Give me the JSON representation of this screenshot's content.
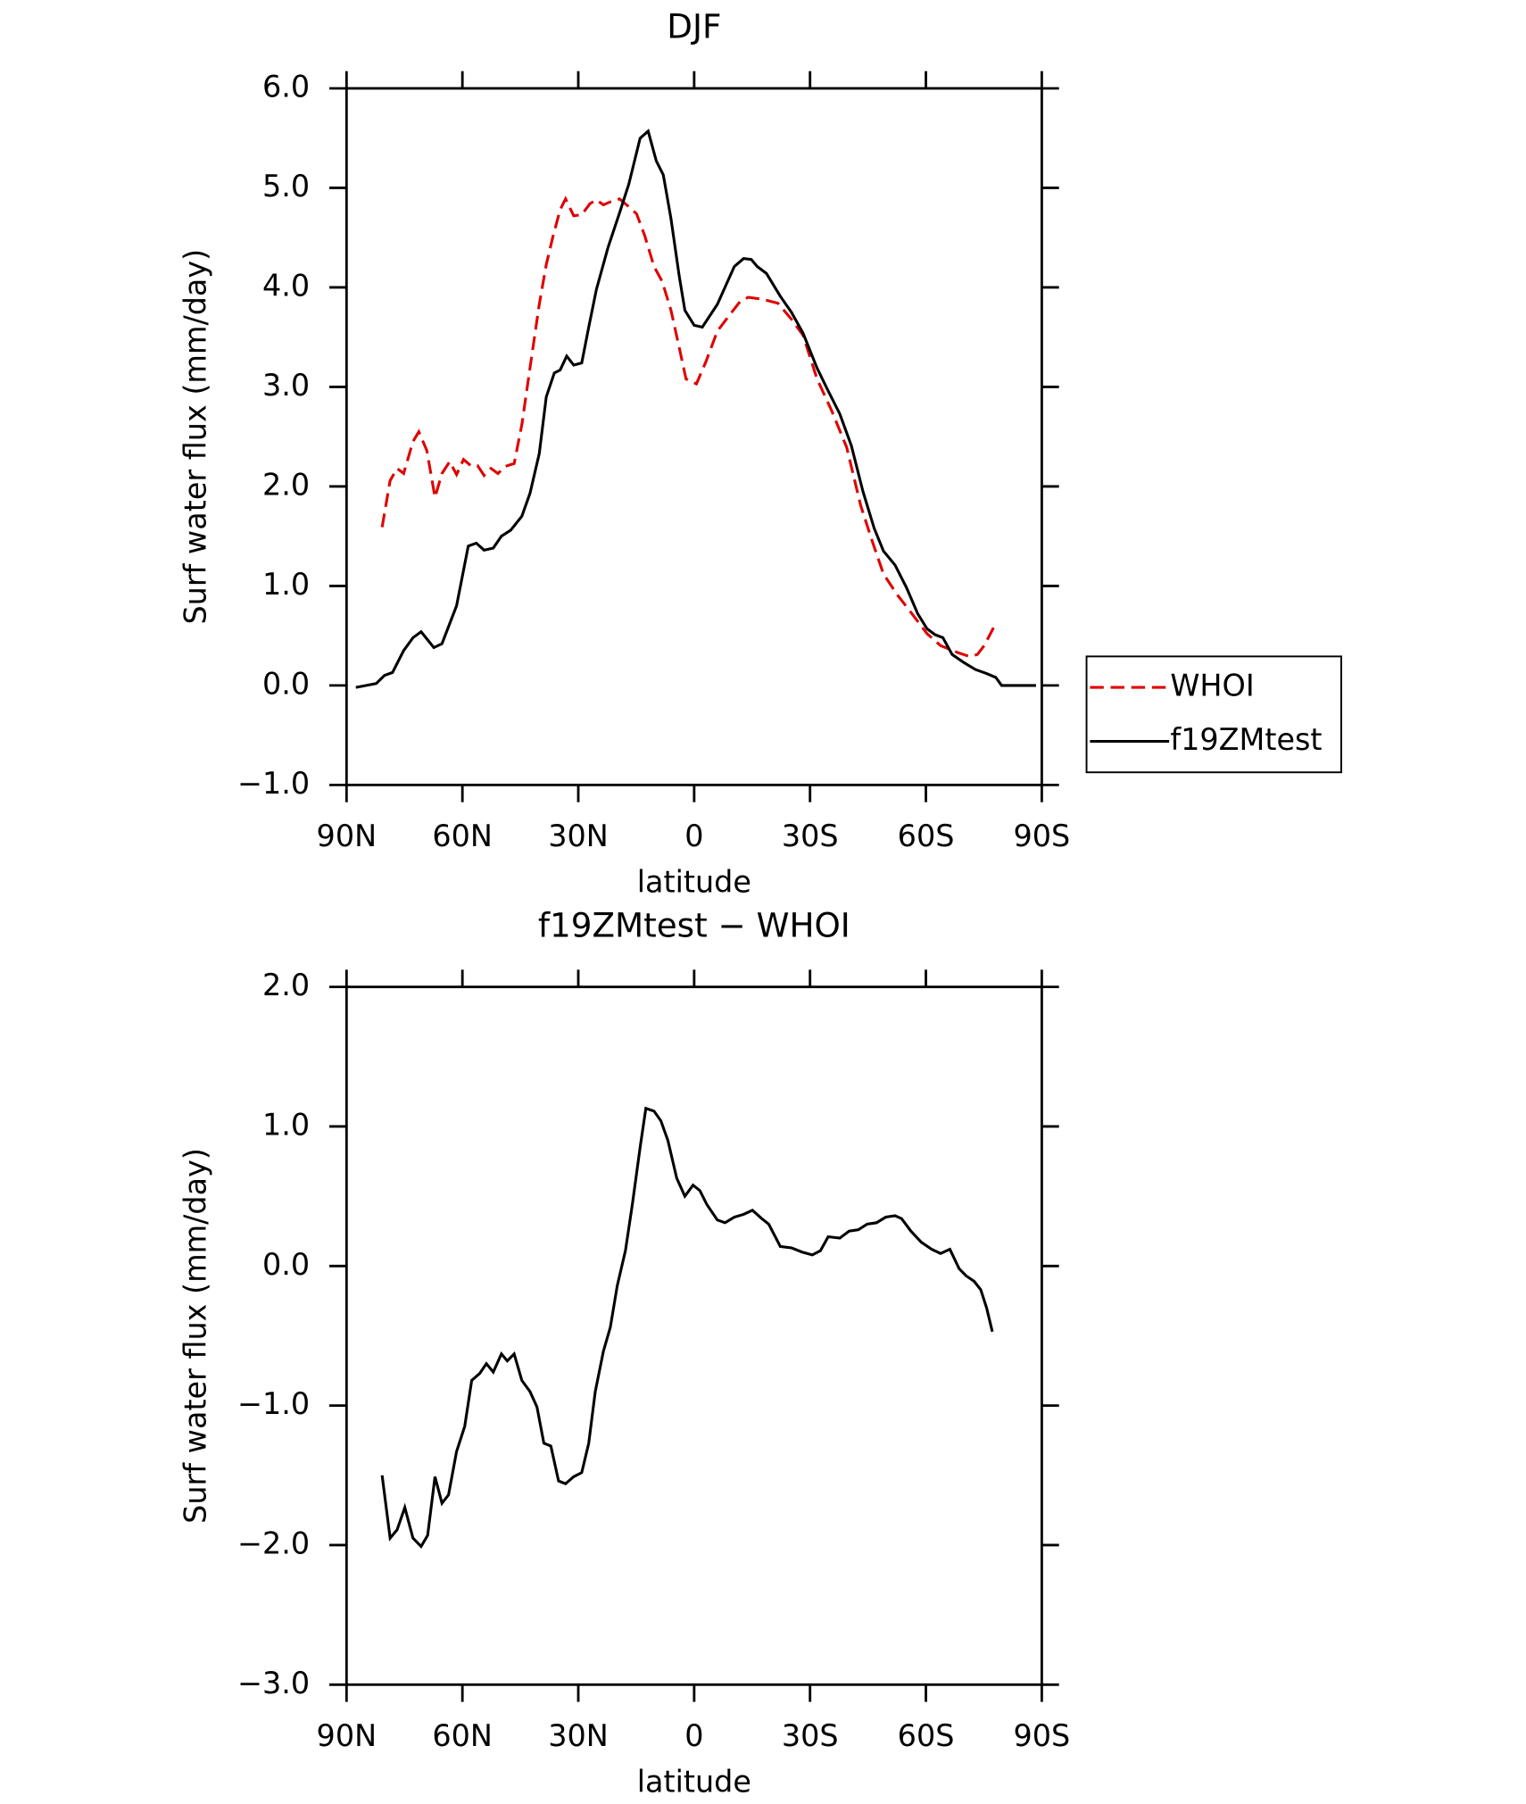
{
  "chart_data": [
    {
      "type": "line",
      "title": "DJF",
      "xlabel": "latitude",
      "ylabel": "Surf water flux (mm/day)",
      "xlim": [
        90,
        -90
      ],
      "xticks": [
        {
          "value": 90,
          "label": "90N"
        },
        {
          "value": 60,
          "label": "60N"
        },
        {
          "value": 30,
          "label": "30N"
        },
        0,
        {
          "value": -30,
          "label": "30S"
        },
        {
          "value": -60,
          "label": "60S"
        },
        {
          "value": -90,
          "label": "90S"
        }
      ],
      "ylim": [
        -1,
        6
      ],
      "yticks": [
        {
          "value": -1,
          "label": "−1.0"
        },
        {
          "value": 0,
          "label": "0.0"
        },
        {
          "value": 1,
          "label": "1.0"
        },
        {
          "value": 2,
          "label": "2.0"
        },
        {
          "value": 3,
          "label": "3.0"
        },
        {
          "value": 4,
          "label": "4.0"
        },
        {
          "value": 5,
          "label": "5.0"
        },
        {
          "value": 6,
          "label": "6.0"
        }
      ],
      "legend": "right",
      "series": [
        {
          "name": "WHOI",
          "color": "#e00000",
          "dashed": true,
          "x": [
            80.8,
            78.7,
            76.9,
            75.2,
            72.8,
            71.3,
            69.2,
            67.1,
            65.3,
            63.3,
            61.5,
            59.7,
            57.9,
            56.1,
            54.4,
            52.6,
            50.8,
            49.0,
            46.6,
            44.6,
            42.5,
            40.1,
            38.3,
            36.5,
            34.7,
            33.3,
            31.2,
            29.1,
            27.0,
            25.3,
            23.5,
            21.7,
            19.3,
            16.9,
            14.9,
            12.8,
            10.4,
            8.3,
            6.0,
            3.9,
            2.1,
            -0.6,
            -3.0,
            -6.0,
            -8.9,
            -11.9,
            -14.0,
            -17.8,
            -21.7,
            -25.2,
            -28.2,
            -31.8,
            -35.6,
            -39.5,
            -43.1,
            -46.0,
            -49.0,
            -52.6,
            -56.4,
            -60.3,
            -63.8,
            -68.3,
            -71.3,
            -73.3,
            -75.1,
            -77.5
          ],
          "values": [
            1.59,
            2.06,
            2.18,
            2.13,
            2.45,
            2.55,
            2.36,
            1.89,
            2.13,
            2.25,
            2.12,
            2.27,
            2.21,
            2.21,
            2.11,
            2.18,
            2.13,
            2.2,
            2.23,
            2.62,
            3.19,
            3.83,
            4.23,
            4.52,
            4.78,
            4.89,
            4.72,
            4.73,
            4.84,
            4.88,
            4.83,
            4.86,
            4.89,
            4.81,
            4.74,
            4.52,
            4.21,
            4.06,
            3.77,
            3.4,
            3.08,
            3.03,
            3.25,
            3.56,
            3.71,
            3.86,
            3.9,
            3.88,
            3.84,
            3.68,
            3.52,
            3.08,
            2.76,
            2.39,
            1.81,
            1.46,
            1.12,
            0.91,
            0.72,
            0.52,
            0.4,
            0.33,
            0.29,
            0.31,
            0.4,
            0.58
          ]
        },
        {
          "name": "f19ZMtest",
          "color": "#000000",
          "dashed": false,
          "x": [
            87.6,
            82.3,
            80.2,
            78.1,
            75.2,
            72.8,
            70.7,
            67.4,
            65.3,
            61.5,
            58.5,
            56.4,
            54.4,
            52.0,
            49.9,
            47.5,
            44.6,
            42.5,
            40.1,
            38.3,
            36.2,
            34.7,
            33.0,
            31.2,
            29.1,
            27.3,
            25.3,
            22.3,
            19.3,
            16.9,
            14.0,
            11.9,
            9.8,
            8.0,
            6.0,
            3.9,
            2.4,
            0.0,
            -2.1,
            -6.0,
            -10.4,
            -12.8,
            -14.8,
            -16.3,
            -18.7,
            -22.3,
            -25.2,
            -28.2,
            -31.8,
            -34.7,
            -37.7,
            -40.7,
            -43.7,
            -46.6,
            -49.0,
            -52.0,
            -55.0,
            -57.9,
            -60.3,
            -62.4,
            -64.4,
            -66.8,
            -69.8,
            -72.8,
            -75.7,
            -78.1,
            -79.6,
            -88.5
          ],
          "values": [
            -0.02,
            0.02,
            0.1,
            0.13,
            0.35,
            0.48,
            0.54,
            0.38,
            0.42,
            0.8,
            1.4,
            1.43,
            1.36,
            1.38,
            1.5,
            1.56,
            1.7,
            1.93,
            2.33,
            2.9,
            3.14,
            3.17,
            3.31,
            3.22,
            3.24,
            3.6,
            3.98,
            4.4,
            4.75,
            5.04,
            5.5,
            5.57,
            5.27,
            5.13,
            4.69,
            4.12,
            3.77,
            3.62,
            3.6,
            3.83,
            4.21,
            4.29,
            4.28,
            4.21,
            4.14,
            3.91,
            3.75,
            3.54,
            3.19,
            2.96,
            2.73,
            2.41,
            1.95,
            1.58,
            1.35,
            1.21,
            0.98,
            0.72,
            0.57,
            0.51,
            0.48,
            0.31,
            0.23,
            0.16,
            0.12,
            0.08,
            0.0,
            0.0
          ]
        }
      ]
    },
    {
      "type": "line",
      "title": "f19ZMtest − WHOI",
      "xlabel": "latitude",
      "ylabel": "Surf water flux (mm/day)",
      "xlim": [
        90,
        -90
      ],
      "xticks": [
        {
          "value": 90,
          "label": "90N"
        },
        {
          "value": 60,
          "label": "60N"
        },
        {
          "value": 30,
          "label": "30N"
        },
        0,
        {
          "value": -30,
          "label": "30S"
        },
        {
          "value": -60,
          "label": "60S"
        },
        {
          "value": -90,
          "label": "90S"
        }
      ],
      "ylim": [
        -3,
        2
      ],
      "yticks": [
        {
          "value": -3,
          "label": "−3.0"
        },
        {
          "value": -2,
          "label": "−2.0"
        },
        {
          "value": -1,
          "label": "−1.0"
        },
        {
          "value": 0,
          "label": "0.0"
        },
        {
          "value": 1,
          "label": "1.0"
        },
        {
          "value": 2,
          "label": "2.0"
        }
      ],
      "color": "#000000",
      "x": [
        80.8,
        78.7,
        76.9,
        74.9,
        72.8,
        70.7,
        69.0,
        67.1,
        65.3,
        63.6,
        61.5,
        59.4,
        57.6,
        55.5,
        53.8,
        52.0,
        49.9,
        48.4,
        46.6,
        44.6,
        42.5,
        40.7,
        38.9,
        37.1,
        35.1,
        33.3,
        31.2,
        29.1,
        27.3,
        25.6,
        23.5,
        21.7,
        19.9,
        17.8,
        16.0,
        14.0,
        12.5,
        10.4,
        8.6,
        6.8,
        4.5,
        2.4,
        0.3,
        -1.5,
        -3.3,
        -6.0,
        -8.0,
        -10.4,
        -12.8,
        -15.1,
        -17.5,
        -19.3,
        -22.3,
        -25.2,
        -27.9,
        -30.6,
        -32.7,
        -34.7,
        -37.7,
        -40.1,
        -42.5,
        -44.8,
        -47.2,
        -49.6,
        -52.0,
        -53.7,
        -56.1,
        -58.8,
        -61.5,
        -63.8,
        -66.2,
        -68.6,
        -70.4,
        -72.5,
        -74.2,
        -75.7,
        -77.2
      ],
      "values": [
        -1.5,
        -1.95,
        -1.89,
        -1.73,
        -1.95,
        -2.01,
        -1.93,
        -1.51,
        -1.7,
        -1.64,
        -1.33,
        -1.15,
        -0.82,
        -0.77,
        -0.7,
        -0.76,
        -0.63,
        -0.68,
        -0.63,
        -0.82,
        -0.9,
        -1.01,
        -1.27,
        -1.29,
        -1.54,
        -1.56,
        -1.51,
        -1.48,
        -1.27,
        -0.9,
        -0.61,
        -0.44,
        -0.14,
        0.11,
        0.44,
        0.85,
        1.13,
        1.11,
        1.04,
        0.9,
        0.63,
        0.5,
        0.58,
        0.54,
        0.44,
        0.33,
        0.31,
        0.35,
        0.37,
        0.4,
        0.34,
        0.3,
        0.14,
        0.13,
        0.1,
        0.08,
        0.11,
        0.21,
        0.2,
        0.25,
        0.26,
        0.3,
        0.31,
        0.35,
        0.36,
        0.34,
        0.25,
        0.17,
        0.12,
        0.09,
        0.12,
        -0.02,
        -0.07,
        -0.11,
        -0.17,
        -0.3,
        -0.47
      ]
    }
  ]
}
